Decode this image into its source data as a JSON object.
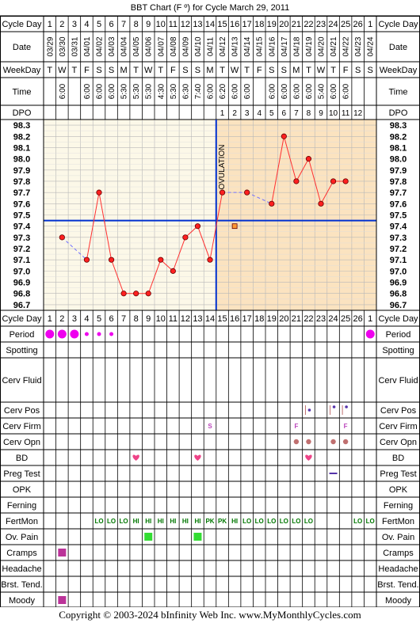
{
  "title": "BBT Chart (F º) for Cycle March 29, 2011",
  "copyright": "Copyright © 2003-2024 bInfinity Web Inc.     www.MyMonthlyCycles.com",
  "colors": {
    "border": "#000000",
    "grid": "#b8b8b8",
    "pre_ovulation_bg": "#fcf8e8",
    "post_ovulation_bg": "#fbe3c0",
    "temp_line": "#ff3030",
    "temp_point": "#ff2020",
    "dashed": "#7070ff",
    "coverline": "#0030d0",
    "ovulation_line": "#0030d0",
    "period": "#ee00ee",
    "cerv_mark": "#c07070",
    "heart": "#ee4488",
    "fertmon": "#007700",
    "ovpain": "#33dd33",
    "cramps": "#bb3399",
    "pregtest": "#5533aa",
    "extra_point": "#ff9933"
  },
  "labels": {
    "cycle_day": "Cycle Day",
    "date": "Date",
    "weekday": "WeekDay",
    "time": "Time",
    "dpo": "DPO",
    "ovulation": "OVULATION"
  },
  "cycle_days": [
    "1",
    "2",
    "3",
    "4",
    "5",
    "6",
    "7",
    "8",
    "9",
    "10",
    "11",
    "12",
    "13",
    "14",
    "15",
    "16",
    "17",
    "18",
    "19",
    "20",
    "21",
    "22",
    "23",
    "24",
    "25",
    "26",
    "1"
  ],
  "dates": [
    "03/29",
    "03/30",
    "03/31",
    "04/01",
    "04/02",
    "04/03",
    "04/04",
    "04/05",
    "04/06",
    "04/07",
    "04/08",
    "04/09",
    "04/10",
    "04/11",
    "04/12",
    "04/13",
    "04/14",
    "04/15",
    "04/16",
    "04/17",
    "04/18",
    "04/19",
    "04/20",
    "04/21",
    "04/22",
    "04/23",
    "04/24"
  ],
  "weekdays": [
    "T",
    "W",
    "T",
    "F",
    "S",
    "S",
    "M",
    "T",
    "W",
    "T",
    "F",
    "S",
    "S",
    "M",
    "T",
    "W",
    "T",
    "F",
    "S",
    "S",
    "M",
    "T",
    "W",
    "T",
    "F",
    "S",
    "S"
  ],
  "times": [
    "",
    "6:00",
    "",
    "6:00",
    "6:00",
    "6:00",
    "5:30",
    "5:30",
    "5:30",
    "4:30",
    "5:30",
    "6:30",
    "7:40",
    "6:00",
    "6:20",
    "6:00",
    "6:00",
    "",
    "6:00",
    "6:00",
    "6:00",
    "6:00",
    "5:40",
    "6:00",
    "6:00",
    "",
    ""
  ],
  "dpo": [
    "",
    "",
    "",
    "",
    "",
    "",
    "",
    "",
    "",
    "",
    "",
    "",
    "",
    "",
    "1",
    "2",
    "3",
    "4",
    "5",
    "6",
    "7",
    "8",
    "9",
    "10",
    "11",
    "12",
    ""
  ],
  "chart_data": {
    "type": "line",
    "title": "BBT Chart (F º) for Cycle March 29, 2011",
    "x": [
      1,
      2,
      3,
      4,
      5,
      6,
      7,
      8,
      9,
      10,
      11,
      12,
      13,
      14,
      15,
      16,
      17,
      18,
      19,
      20,
      21,
      22,
      23,
      24,
      25,
      26,
      27
    ],
    "temperatures": [
      null,
      97.3,
      null,
      97.1,
      97.7,
      97.1,
      96.8,
      96.8,
      96.8,
      97.1,
      97.0,
      97.3,
      97.4,
      97.1,
      97.7,
      null,
      97.7,
      null,
      97.6,
      98.2,
      97.8,
      98.0,
      97.6,
      97.8,
      97.8,
      null,
      null
    ],
    "extra_point": {
      "x": 15,
      "y": 97.4
    },
    "coverline": 97.5,
    "ovulation_day": 14,
    "ylim": [
      96.7,
      98.3
    ],
    "y_ticks": [
      "96.7",
      "96.8",
      "96.9",
      "97.0",
      "97.1",
      "97.2",
      "97.3",
      "97.4",
      "97.5",
      "97.6",
      "97.7",
      "97.8",
      "97.9",
      "98.0",
      "98.1",
      "98.2",
      "98.3"
    ]
  },
  "rows": [
    {
      "key": "period",
      "label": "Period"
    },
    {
      "key": "spotting",
      "label": "Spotting"
    },
    {
      "key": "cervfluid",
      "label": "Cerv Fluid"
    },
    {
      "key": "cervpos",
      "label": "Cerv Pos"
    },
    {
      "key": "cervfirm",
      "label": "Cerv Firm"
    },
    {
      "key": "cervopn",
      "label": "Cerv Opn"
    },
    {
      "key": "bd",
      "label": "BD"
    },
    {
      "key": "pregtest",
      "label": "Preg Test"
    },
    {
      "key": "opk",
      "label": "OPK"
    },
    {
      "key": "ferning",
      "label": "Ferning"
    },
    {
      "key": "fertmon",
      "label": "FertMon"
    },
    {
      "key": "ovpain",
      "label": "Ov. Pain"
    },
    {
      "key": "cramps",
      "label": "Cramps"
    },
    {
      "key": "headache",
      "label": "Headache"
    },
    {
      "key": "brsttend",
      "label": "Brst. Tend."
    },
    {
      "key": "moody",
      "label": "Moody"
    }
  ],
  "period": [
    {
      "day": 1,
      "size": "large"
    },
    {
      "day": 2,
      "size": "large"
    },
    {
      "day": 3,
      "size": "large"
    },
    {
      "day": 4,
      "size": "small"
    },
    {
      "day": 5,
      "size": "small"
    },
    {
      "day": 6,
      "size": "small"
    },
    {
      "day": 27,
      "size": "large"
    }
  ],
  "cervpos": [
    {
      "day": 22,
      "mark": "low"
    },
    {
      "day": 24,
      "mark": "high"
    },
    {
      "day": 25,
      "mark": "high"
    }
  ],
  "cervfirm": [
    {
      "day": 14,
      "text": "S"
    },
    {
      "day": 21,
      "text": "F"
    },
    {
      "day": 25,
      "text": "F"
    }
  ],
  "cervopn": [
    21,
    22,
    24,
    25
  ],
  "bd": [
    8,
    13,
    22
  ],
  "pregtest": [
    24
  ],
  "fertmon": [
    {
      "day": 5,
      "text": "LO"
    },
    {
      "day": 6,
      "text": "LO"
    },
    {
      "day": 7,
      "text": "LO"
    },
    {
      "day": 8,
      "text": "HI"
    },
    {
      "day": 9,
      "text": "HI"
    },
    {
      "day": 10,
      "text": "HI"
    },
    {
      "day": 11,
      "text": "HI"
    },
    {
      "day": 12,
      "text": "HI"
    },
    {
      "day": 13,
      "text": "HI"
    },
    {
      "day": 14,
      "text": "PK"
    },
    {
      "day": 15,
      "text": "PK"
    },
    {
      "day": 16,
      "text": "HI"
    },
    {
      "day": 17,
      "text": "LO"
    },
    {
      "day": 18,
      "text": "LO"
    },
    {
      "day": 19,
      "text": "LO"
    },
    {
      "day": 20,
      "text": "LO"
    },
    {
      "day": 21,
      "text": "LO"
    },
    {
      "day": 22,
      "text": "LO"
    },
    {
      "day": 26,
      "text": "LO"
    },
    {
      "day": 27,
      "text": "LO"
    }
  ],
  "ovpain": [
    9,
    13
  ],
  "cramps": [
    2
  ],
  "moody": [
    2
  ]
}
